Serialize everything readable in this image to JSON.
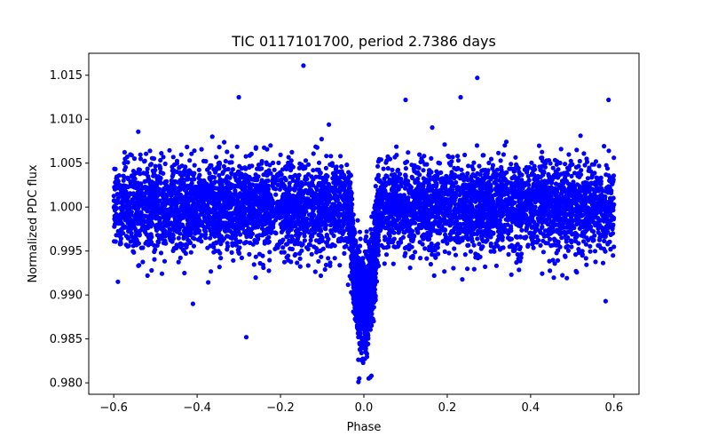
{
  "chart_data": {
    "type": "scatter",
    "title": "TIC 0117101700, period 2.7386 days",
    "xlabel": "Phase",
    "ylabel": "Normalized PDC flux",
    "xlim": [
      -0.66,
      0.66
    ],
    "ylim": [
      0.9787,
      1.0175
    ],
    "x_ticks": [
      -0.6,
      -0.4,
      -0.2,
      0.0,
      0.2,
      0.4,
      0.6
    ],
    "x_tick_labels": [
      "−0.6",
      "−0.4",
      "−0.2",
      "0.0",
      "0.2",
      "0.4",
      "0.6"
    ],
    "y_ticks": [
      0.98,
      0.985,
      0.99,
      0.995,
      1.0,
      1.005,
      1.01,
      1.015
    ],
    "y_tick_labels": [
      "0.980",
      "0.985",
      "0.990",
      "0.995",
      "1.000",
      "1.005",
      "1.010",
      "1.015"
    ],
    "grid": false,
    "marker_color": "#0000ff",
    "series": [
      {
        "name": "PDC flux",
        "baseline_flux": 1.0,
        "baseline_scatter": 0.0025,
        "phase_range": [
          -0.6,
          0.6
        ],
        "transit_center_phase": 0.0,
        "transit_depth": 0.011,
        "transit_half_width_phase": 0.035,
        "notable_points": [
          {
            "x": -0.145,
            "y": 1.0161
          },
          {
            "x": 0.272,
            "y": 1.0147
          },
          {
            "x": -0.282,
            "y": 0.9852
          },
          {
            "x": -0.3,
            "y": 1.0125
          },
          {
            "x": 0.232,
            "y": 1.0125
          },
          {
            "x": -0.013,
            "y": 0.9801
          },
          {
            "x": 0.018,
            "y": 0.9808
          },
          {
            "x": 0.1,
            "y": 1.0122
          },
          {
            "x": 0.587,
            "y": 1.0122
          },
          {
            "x": -0.59,
            "y": 0.9915
          },
          {
            "x": 0.58,
            "y": 0.9893
          },
          {
            "x": -0.41,
            "y": 0.989
          }
        ]
      }
    ]
  }
}
